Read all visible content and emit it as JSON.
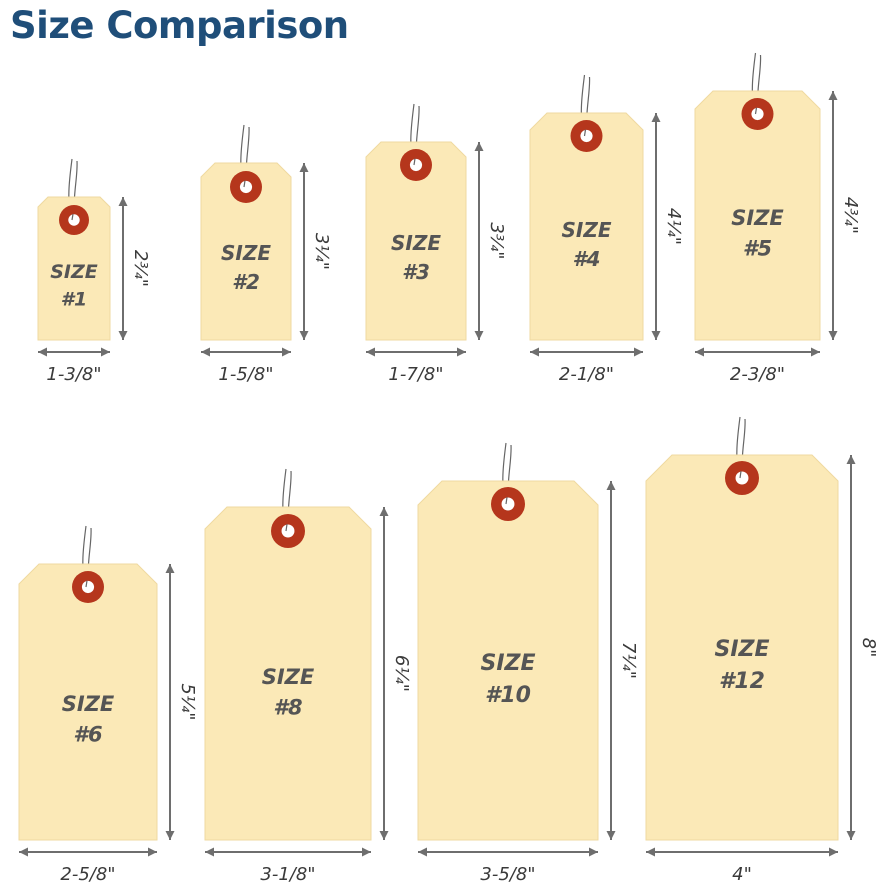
{
  "title": "Size Comparison",
  "colors": {
    "title": "#1f4e79",
    "tag_fill": "#fbe9b7",
    "tag_edge": "#efd9a0",
    "eyelet_outer": "#b5361c",
    "eyelet_inner": "#ffffff",
    "string": "#666666",
    "label_text": "#555555",
    "arrow": "#6e6e6e",
    "dim_text": "#3a3a3a"
  },
  "size_word": "SIZE",
  "tags": [
    {
      "number": "#1",
      "width": "1-3/8\"",
      "height": "2¾\""
    },
    {
      "number": "#2",
      "width": "1-5/8\"",
      "height": "3¼\""
    },
    {
      "number": "#3",
      "width": "1-7/8\"",
      "height": "3¾\""
    },
    {
      "number": "#4",
      "width": "2-1/8\"",
      "height": "4¼\""
    },
    {
      "number": "#5",
      "width": "2-3/8\"",
      "height": "4¾\""
    },
    {
      "number": "#6",
      "width": "2-5/8\"",
      "height": "5¼\""
    },
    {
      "number": "#8",
      "width": "3-1/8\"",
      "height": "6¼\""
    },
    {
      "number": "#10",
      "width": "3-5/8\"",
      "height": "7¼\""
    },
    {
      "number": "#12",
      "width": "4\"",
      "height": "8\""
    }
  ]
}
